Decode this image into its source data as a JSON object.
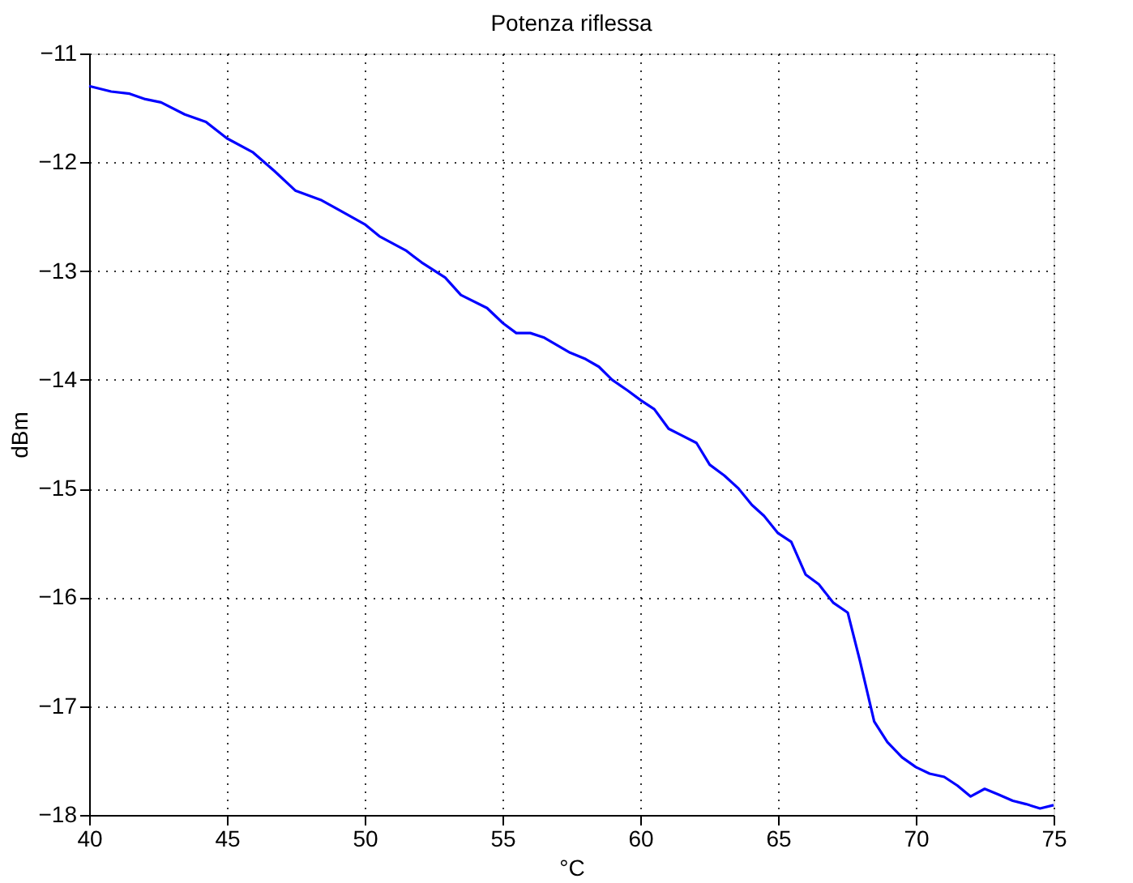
{
  "chart_data": {
    "type": "line",
    "title": "Potenza riflessa",
    "xlabel": "°C",
    "ylabel": "dBm",
    "xlim": [
      40,
      75
    ],
    "xticks": [
      40,
      45,
      50,
      55,
      60,
      65,
      70,
      75
    ],
    "ylim": [
      -18,
      -11
    ],
    "yticks": [
      -18,
      -17,
      -16,
      -15,
      -14,
      -13,
      -12,
      -11
    ],
    "grid": true,
    "line_style": "solid",
    "series": [
      {
        "color": "#0000ff",
        "x": [
          40,
          40.8,
          41.47,
          42.04,
          42.61,
          43.47,
          44.24,
          45,
          45.95,
          46.72,
          47.48,
          48.44,
          49.29,
          50,
          50.53,
          51.49,
          52.06,
          52.92,
          53.49,
          54.44,
          55.02,
          55.5,
          56.01,
          56.49,
          57.45,
          58.02,
          58.5,
          58.98,
          59.55,
          60.03,
          60.51,
          61.03,
          61.5,
          62.04,
          62.52,
          63.05,
          63.57,
          64.05,
          64.49,
          65,
          65.48,
          66,
          66.48,
          67.01,
          67.53,
          67.97,
          68.49,
          68.97,
          69.5,
          70,
          70.5,
          71.03,
          71.51,
          71.99,
          72.5,
          72.98,
          73.52,
          74,
          74.51,
          75
        ],
        "values": [
          -11.3,
          -11.35,
          -11.37,
          -11.42,
          -11.45,
          -11.56,
          -11.63,
          -11.78,
          -11.91,
          -12.08,
          -12.26,
          -12.35,
          -12.47,
          -12.57,
          -12.68,
          -12.81,
          -12.92,
          -13.06,
          -13.22,
          -13.34,
          -13.48,
          -13.57,
          -13.57,
          -13.61,
          -13.75,
          -13.81,
          -13.88,
          -14,
          -14.1,
          -14.19,
          -14.27,
          -14.45,
          -14.51,
          -14.58,
          -14.78,
          -14.88,
          -15,
          -15.15,
          -15.25,
          -15.41,
          -15.49,
          -15.79,
          -15.88,
          -16.05,
          -16.14,
          -16.58,
          -17.14,
          -17.33,
          -17.47,
          -17.56,
          -17.62,
          -17.65,
          -17.73,
          -17.83,
          -17.76,
          -17.81,
          -17.87,
          -17.9,
          -17.94,
          -17.91
        ]
      }
    ]
  }
}
